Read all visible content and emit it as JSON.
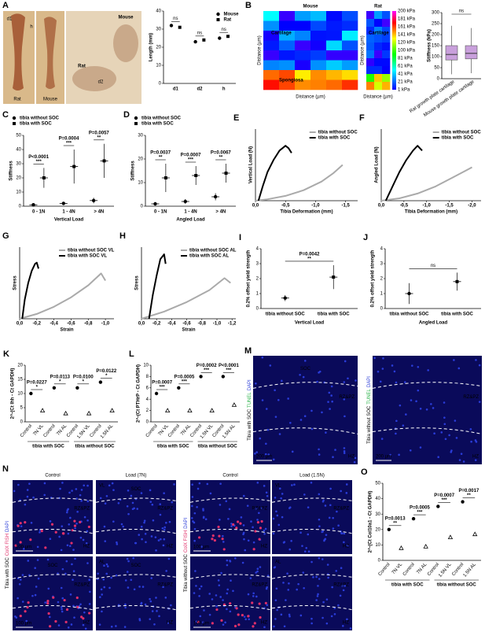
{
  "figures": [
    {
      "panel": "A",
      "labels": [
        "d1",
        "h",
        "Rat",
        "Mouse",
        "Rat",
        "Mouse",
        "d2"
      ]
    },
    {
      "panel": "B",
      "maps": [
        {
          "title": "Mouse",
          "regions": [
            "Cartilage",
            "Spongiosa"
          ],
          "xlabel": "Distance (µm)",
          "ylabel": "Distance (µm)"
        },
        {
          "title": "Rat",
          "regions": [
            "Cartilage"
          ],
          "xlabel": "Distance (µm)",
          "ylabel": "Distance (µm)"
        }
      ],
      "colorbar": [
        "200 kPa",
        "181 kPa",
        "161 kPa",
        "141 kPa",
        "120 kPa",
        "100 kPa",
        "81 kPa",
        "61 kPa",
        "41 kPa",
        "21 kPa",
        "1 kPa"
      ]
    },
    {
      "panel": "M",
      "tiles": [
        {
          "side": [
            "Tibia with SOC",
            "TUNEL",
            "DAPI"
          ],
          "labels": [
            "SOC",
            "RZ&PZ",
            "HZ"
          ],
          "scale": "200 µm"
        },
        {
          "side": [
            "Tibia without SOC",
            "TUNEL",
            "DAPI"
          ],
          "labels": [
            "RZ&PZ",
            "HZ"
          ],
          "scale": "200 µm"
        }
      ]
    },
    {
      "panel": "N",
      "sides": [
        [
          "Tibia with SOC",
          "ColX FISH",
          "DAPI"
        ],
        [
          "Tibia without SOC",
          "ColX FISH",
          "DAPI"
        ]
      ],
      "headers": [
        "Control",
        "Load (7N)",
        "Control",
        "Load (1.5N)"
      ],
      "tiles": [
        {
          "labels": [
            "RZ&PZ",
            "HZ"
          ],
          "scale": "100 µm"
        },
        {
          "labels": [
            "VL",
            "SOC",
            "RZ&PZ",
            "HZ"
          ]
        },
        {
          "labels": [
            "SOC",
            "RZ&PZ",
            "HZ"
          ],
          "scale": "100 µm"
        },
        {
          "labels": [
            "AL",
            "SOC",
            "RZ&PZ",
            "HZ"
          ]
        },
        {
          "labels": [
            "RZ&PZ",
            "HZ"
          ],
          "scale": "100 µm"
        },
        {
          "labels": [
            "VL",
            "RZ&PZ",
            "HZ"
          ]
        },
        {
          "labels": [
            "RZ&PZ",
            "HZ"
          ],
          "scale": "100 µm"
        },
        {
          "labels": [
            "AL",
            "RZ&PZ",
            "HZ"
          ]
        }
      ]
    }
  ],
  "chart_data": [
    {
      "type": "dot",
      "ylabel": "Length (mm)",
      "categories": [
        "d1",
        "d2",
        "h"
      ],
      "series": [
        {
          "name": "Mouse",
          "color": "#000000",
          "values": [
            32,
            23,
            25
          ]
        },
        {
          "name": "Rat",
          "color": "#000000",
          "values": [
            31,
            24,
            26
          ]
        }
      ],
      "ylim": [
        0,
        40
      ],
      "yticks": [
        0,
        10,
        20,
        30,
        40
      ],
      "annotations": [
        {
          "label": "ns"
        },
        {
          "label": "ns"
        },
        {
          "label": "ns"
        }
      ],
      "legend": "upper right"
    },
    {
      "type": "box",
      "ylabel": "Stiffness (kPa)",
      "categories": [
        "Rat growth plate cartilage",
        "Mouse growth plate cartilage"
      ],
      "color": "#c9a0dc",
      "whislo": [
        20,
        25
      ],
      "q1": [
        85,
        90
      ],
      "median": [
        110,
        115
      ],
      "q3": [
        150,
        150
      ],
      "whishi": [
        240,
        230
      ],
      "ylim": [
        0,
        300
      ],
      "yticks": [
        0,
        50,
        100,
        150,
        200,
        250,
        300
      ],
      "annotations": [
        {
          "label": "ns"
        }
      ]
    },
    {
      "type": "dot",
      "panel": "C",
      "ylabel": "Stiffness",
      "xlabel": "Vertical Load",
      "categories": [
        "0 - 1N",
        "1 - 4N",
        "> 4N"
      ],
      "series": [
        {
          "name": "tibia without SOC",
          "color": "#000000",
          "values": [
            1,
            2,
            4
          ],
          "errors": [
            0.5,
            1,
            2
          ]
        },
        {
          "name": "tibia with SOC",
          "color": "#000000",
          "values": [
            20,
            28,
            32
          ],
          "errors": [
            7,
            12,
            12
          ]
        }
      ],
      "ylim": [
        0,
        50
      ],
      "yticks": [
        0,
        10,
        20,
        30,
        40,
        50
      ],
      "annotations": [
        {
          "label": "P<0.0001",
          "stars": "***"
        },
        {
          "label": "P=0.0004",
          "stars": "***"
        },
        {
          "label": "P=0.0057",
          "stars": "**"
        }
      ],
      "legend": "top"
    },
    {
      "type": "dot",
      "panel": "D",
      "ylabel": "Stiffness",
      "xlabel": "Angled Load",
      "categories": [
        "0 - 1N",
        "1 - 4N",
        "> 4N"
      ],
      "series": [
        {
          "name": "tibia without SOC",
          "color": "#000000",
          "values": [
            1,
            2,
            4
          ],
          "errors": [
            0.5,
            1,
            1.5
          ]
        },
        {
          "name": "tibia with SOC",
          "color": "#000000",
          "values": [
            12,
            13,
            14
          ],
          "errors": [
            6,
            4,
            4
          ]
        }
      ],
      "ylim": [
        0,
        30
      ],
      "yticks": [
        0,
        10,
        20,
        30
      ],
      "annotations": [
        {
          "label": "P=0.0037",
          "stars": "**"
        },
        {
          "label": "P=0.0007",
          "stars": "***"
        },
        {
          "label": "P=0.0067",
          "stars": "**"
        }
      ],
      "legend": "top"
    },
    {
      "type": "line",
      "panel": "E",
      "ylabel": "Vertical Load (N)",
      "xlabel": "Tibia Deformation (mm)",
      "series": [
        {
          "name": "tibia without SOC",
          "color": "#aaaaaa",
          "x": [
            0,
            -0.2,
            -0.5,
            -0.8,
            -1.1,
            -1.3,
            -1.45
          ],
          "values": [
            0,
            0.3,
            1,
            2.2,
            4,
            5.8,
            7.5
          ]
        },
        {
          "name": "tibia with SOC",
          "color": "#000000",
          "x": [
            -0.05,
            -0.12,
            -0.2,
            -0.3,
            -0.4,
            -0.5,
            -0.55,
            -0.6
          ],
          "values": [
            0,
            3,
            6,
            8.5,
            10.5,
            11.5,
            11,
            10
          ]
        }
      ],
      "xlim": [
        0,
        -1.7
      ],
      "ylim": [
        0,
        15
      ],
      "xticks": [
        {
          "value": 0,
          "label": "0,0"
        },
        {
          "value": -0.5,
          "label": "-0,5"
        },
        {
          "value": -1,
          "label": "-1,0"
        },
        {
          "value": -1.5,
          "label": "-1,5"
        }
      ],
      "legend": "upper right"
    },
    {
      "type": "line",
      "panel": "F",
      "ylabel": "Angled Load (N)",
      "xlabel": "Tibia Deformation (mm)",
      "series": [
        {
          "name": "tibia without SOC",
          "color": "#aaaaaa",
          "x": [
            0,
            -0.4,
            -0.8,
            -1.2,
            -1.6,
            -1.9,
            -2.0
          ],
          "values": [
            0,
            0.5,
            1.5,
            3,
            5,
            6.5,
            7
          ]
        },
        {
          "name": "tibia with SOC",
          "color": "#000000",
          "x": [
            -0.1,
            -0.25,
            -0.4,
            -0.55,
            -0.7,
            -0.8,
            -0.9
          ],
          "values": [
            0,
            3,
            6,
            8.5,
            10.5,
            11.5,
            10.5
          ]
        }
      ],
      "xlim": [
        0,
        -2.2
      ],
      "ylim": [
        0,
        15
      ],
      "xticks": [
        {
          "value": 0,
          "label": "0,0"
        },
        {
          "value": -0.5,
          "label": "-0,5"
        },
        {
          "value": -1,
          "label": "-1,0"
        },
        {
          "value": -1.5,
          "label": "-1,5"
        },
        {
          "value": -2,
          "label": "-2,0"
        }
      ],
      "legend": "upper right"
    },
    {
      "type": "line",
      "panel": "G",
      "ylabel": "Stress",
      "xlabel": "Strain",
      "series": [
        {
          "name": "tibia without SOC VL",
          "color": "#aaaaaa",
          "x": [
            0,
            -0.2,
            -0.4,
            -0.6,
            -0.8,
            -0.95,
            -1.0
          ],
          "values": [
            0,
            0.2,
            0.5,
            0.9,
            1.4,
            1.9,
            1.6
          ]
        },
        {
          "name": "tibia with SOC VL",
          "color": "#000000",
          "x": [
            -0.03,
            -0.06,
            -0.1,
            -0.14,
            -0.18,
            -0.2,
            -0.22
          ],
          "values": [
            0,
            0.8,
            1.5,
            2,
            2.3,
            2.35,
            2.1
          ]
        }
      ],
      "xlim": [
        0,
        -1.1
      ],
      "ylim": [
        0,
        3
      ],
      "xticks": [
        {
          "value": 0,
          "label": "0,0"
        },
        {
          "value": -0.2,
          "label": "-0,2"
        },
        {
          "value": -0.4,
          "label": "-0,4"
        },
        {
          "value": -0.6,
          "label": "-0,6"
        },
        {
          "value": -0.8,
          "label": "-0,8"
        },
        {
          "value": -1,
          "label": "-1,0"
        }
      ],
      "legend": "upper right"
    },
    {
      "type": "line",
      "panel": "H",
      "ylabel": "Stress",
      "xlabel": "Strain",
      "series": [
        {
          "name": "tibia without SOC AL",
          "color": "#aaaaaa",
          "x": [
            0,
            -0.3,
            -0.6,
            -0.9,
            -1.1,
            -1.18
          ],
          "values": [
            0,
            0.3,
            0.7,
            1.2,
            1.7,
            1.5
          ]
        },
        {
          "name": "tibia with SOC AL",
          "color": "#000000",
          "x": [
            -0.1,
            -0.15,
            -0.2,
            -0.25,
            -0.3,
            -0.32
          ],
          "values": [
            0,
            1,
            1.8,
            2.5,
            2.7,
            2.3
          ]
        }
      ],
      "xlim": [
        0,
        -1.25
      ],
      "ylim": [
        0,
        3
      ],
      "xticks": [
        {
          "value": 0,
          "label": "0,0"
        },
        {
          "value": -0.2,
          "label": "-0,2"
        },
        {
          "value": -0.4,
          "label": "-0,4"
        },
        {
          "value": -0.6,
          "label": "-0,6"
        },
        {
          "value": -0.8,
          "label": "-0,8"
        },
        {
          "value": -1,
          "label": "-1,0"
        },
        {
          "value": -1.2,
          "label": "-1,2"
        }
      ],
      "legend": "upper right"
    },
    {
      "type": "dot",
      "panel": "I",
      "ylabel": "0.2% offset yield strength",
      "xlabel": "Vertical Load",
      "categories": [
        "tibia without SOC",
        "tibia with SOC"
      ],
      "series": [
        {
          "color": "#000000",
          "values": [
            0.7,
            2.1
          ],
          "errors": [
            0.2,
            0.8
          ]
        }
      ],
      "ylim": [
        0,
        4
      ],
      "yticks": [
        0,
        1,
        2,
        3,
        4
      ],
      "annotations": [
        {
          "label": "P=0.0042",
          "stars": "**"
        }
      ]
    },
    {
      "type": "dot",
      "panel": "J",
      "ylabel": "0.2% offset yield strength",
      "xlabel": "Angled Load",
      "categories": [
        "tibia without SOC",
        "tibia with SOC"
      ],
      "series": [
        {
          "color": "#000000",
          "values": [
            1.0,
            1.8
          ],
          "errors": [
            0.7,
            0.6
          ]
        }
      ],
      "ylim": [
        0,
        4
      ],
      "yticks": [
        0,
        1,
        2,
        3,
        4
      ],
      "annotations": [
        {
          "label": "ns"
        }
      ]
    },
    {
      "type": "dot",
      "panel": "K",
      "ylabel": "2^-(Ct Ihh - Ct GAPDH)",
      "categories": [
        "Control",
        "7N VL",
        "Control",
        "7N AL",
        "Control",
        "1.5N VL",
        "Control",
        "1.5N AL"
      ],
      "groups": [
        "tibia with SOC",
        "tibia without SOC"
      ],
      "series": [
        {
          "color": "#000000",
          "values": [
            10,
            4,
            12,
            3,
            12,
            3,
            14,
            4
          ]
        }
      ],
      "ylim": [
        0,
        20
      ],
      "yticks": [
        0,
        5,
        10,
        15,
        20
      ],
      "annotations": [
        {
          "label": "P=0.0227",
          "stars": "*"
        },
        {
          "label": "P=0.0113",
          "stars": "*"
        },
        {
          "label": "P=0.0100",
          "stars": "*"
        },
        {
          "label": "P=0.0122",
          "stars": "*"
        }
      ]
    },
    {
      "type": "dot",
      "panel": "L",
      "ylabel": "2^-(Ct PTHrP - Ct GAPDH)",
      "categories": [
        "Control",
        "7N VL",
        "Control",
        "7N AL",
        "Control",
        "1.5N VL",
        "Control",
        "1.5N AL"
      ],
      "groups": [
        "tibia with SOC",
        "tibia without SOC"
      ],
      "series": [
        {
          "color": "#000000",
          "values": [
            5,
            2,
            6,
            2,
            8,
            2,
            8,
            3
          ]
        }
      ],
      "ylim": [
        0,
        10
      ],
      "yticks": [
        0,
        2,
        4,
        6,
        8,
        10
      ],
      "annotations": [
        {
          "label": "P=0.0007",
          "stars": "***"
        },
        {
          "label": "P=0.0005",
          "stars": "***"
        },
        {
          "label": "P=0.0002",
          "stars": "***"
        },
        {
          "label": "P<0.0001",
          "stars": "***"
        }
      ]
    },
    {
      "type": "dot",
      "panel": "O",
      "ylabel": "2^-(Ct Col10a1 - Ct GAPDH)",
      "categories": [
        "Control",
        "7N VL",
        "Control",
        "7N AL",
        "Control",
        "1.5N VL",
        "Control",
        "1.5N AL"
      ],
      "groups": [
        "tibia with SOC",
        "tibia without SOC"
      ],
      "series": [
        {
          "color": "#000000",
          "values": [
            20,
            8,
            27,
            9,
            35,
            15,
            38,
            17
          ]
        }
      ],
      "ylim": [
        0,
        50
      ],
      "yticks": [
        0,
        10,
        20,
        30,
        40,
        50
      ],
      "annotations": [
        {
          "label": "P=0.0013",
          "stars": "**"
        },
        {
          "label": "P=0.0005",
          "stars": "***"
        },
        {
          "label": "P=0.0007",
          "stars": "***"
        },
        {
          "label": "P=0.0017",
          "stars": "**"
        }
      ]
    }
  ]
}
